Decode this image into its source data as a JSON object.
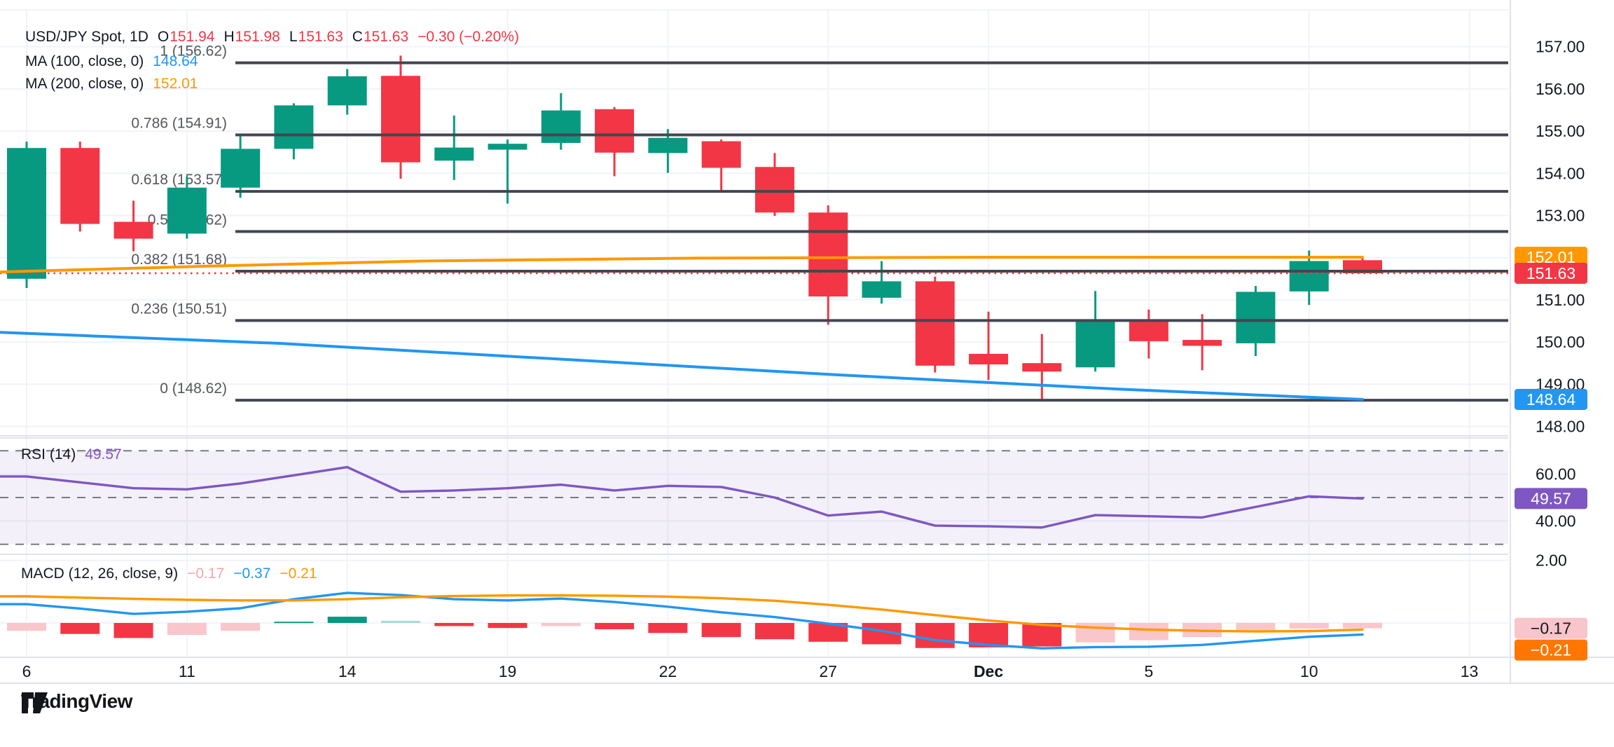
{
  "header": {
    "symbol": "USD/JPY Spot, 1D",
    "ohlc": [
      {
        "k": "O",
        "v": "151.94"
      },
      {
        "k": "H",
        "v": "151.98"
      },
      {
        "k": "L",
        "v": "151.63"
      },
      {
        "k": "C",
        "v": "151.63"
      }
    ],
    "change": "−0.30 (−0.20%)",
    "ma100_label": "MA (100, close, 0)",
    "ma100_value": "148.64",
    "ma200_label": "MA (200, close, 0)",
    "ma200_value": "152.01"
  },
  "rsi_legend": {
    "label": "RSI (14)",
    "value": "49.57"
  },
  "macd_legend": {
    "label": "MACD (12, 26, close, 9)",
    "hist": "−0.17",
    "macd": "−0.37",
    "signal": "−0.21"
  },
  "watermark": "TradingView",
  "colors": {
    "up": "#089981",
    "down": "#f23645",
    "ma100": "#2196f3",
    "ma200": "#ff9800",
    "rsi": "#7e57c2",
    "rsi_band": "rgba(126,87,194,0.09)",
    "rsi_dash": "#787b86",
    "grid": "#f0f3fa",
    "separator": "#e0e3eb",
    "text": "#131722",
    "fib_line": "#434651",
    "fib_label": "#55575e",
    "hist_red": "#f23645",
    "hist_pink": "#f9c6cb",
    "hist_teal": "#089981",
    "hist_teal_light": "#a8dcd4",
    "close_line": "#f23645",
    "badge_orange": "#ff9800",
    "badge_red": "#f23645",
    "badge_blue": "#2196f3",
    "badge_purple": "#7e57c2",
    "badge_pink": "#f8c5ca",
    "badge_deep_orange": "#ff7700"
  },
  "price_axis": {
    "labels": [
      "157.00",
      "156.00",
      "155.00",
      "154.00",
      "153.00",
      "151.00",
      "150.00",
      "149.00",
      "148.00"
    ],
    "values": [
      157,
      156,
      155,
      154,
      153,
      151,
      150,
      149,
      148
    ],
    "badges": [
      {
        "text": "152.01",
        "value": 152.01,
        "bg": "#ff9800",
        "fg": "#ffffff"
      },
      {
        "text": "151.63",
        "value": 151.63,
        "bg": "#f23645",
        "fg": "#ffffff"
      },
      {
        "text": "148.64",
        "value": 148.64,
        "bg": "#2196f3",
        "fg": "#ffffff"
      }
    ]
  },
  "rsi_axis": {
    "labels": [
      "60.00",
      "40.00"
    ],
    "values": [
      60,
      40
    ],
    "badge": {
      "text": "49.57",
      "value": 49.57,
      "bg": "#7e57c2",
      "fg": "#ffffff"
    }
  },
  "macd_axis": {
    "labels": [
      "2.00"
    ],
    "values": [
      2
    ],
    "badges": [
      {
        "text": "−0.17",
        "value": -0.17,
        "bg": "#f8c5ca",
        "fg": "#131722"
      },
      {
        "text": "−0.21",
        "value": -0.21,
        "bg": "#ff7700",
        "fg": "#ffffff"
      }
    ]
  },
  "time_axis": {
    "ticks": [
      {
        "label": "6",
        "index": 0,
        "bold": false
      },
      {
        "label": "11",
        "index": 3,
        "bold": false
      },
      {
        "label": "14",
        "index": 6,
        "bold": false
      },
      {
        "label": "19",
        "index": 9,
        "bold": false
      },
      {
        "label": "22",
        "index": 12,
        "bold": false
      },
      {
        "label": "27",
        "index": 15,
        "bold": false
      },
      {
        "label": "Dec",
        "index": 18,
        "bold": true
      },
      {
        "label": "5",
        "index": 21,
        "bold": false
      },
      {
        "label": "10",
        "index": 24,
        "bold": false
      },
      {
        "label": "13",
        "index": 27,
        "bold": false
      }
    ]
  },
  "chart_data": {
    "type": "candlestick",
    "title": "USD/JPY Spot, 1D",
    "interval": "1D",
    "price_range_visible": [
      148.0,
      157.0
    ],
    "dates": [
      "Nov 6",
      "Nov 7",
      "Nov 8",
      "Nov 11",
      "Nov 12",
      "Nov 13",
      "Nov 14",
      "Nov 15",
      "Nov 18",
      "Nov 19",
      "Nov 20",
      "Nov 21",
      "Nov 22",
      "Nov 25",
      "Nov 26",
      "Nov 27",
      "Nov 28",
      "Nov 29",
      "Dec 2",
      "Dec 3",
      "Dec 4",
      "Dec 5",
      "Dec 6",
      "Dec 9",
      "Dec 10",
      "Dec 11"
    ],
    "open": [
      151.5,
      154.6,
      152.85,
      152.57,
      153.66,
      154.58,
      155.61,
      156.31,
      154.3,
      154.56,
      154.72,
      155.52,
      154.48,
      154.76,
      154.15,
      153.07,
      151.05,
      151.44,
      149.72,
      149.5,
      149.4,
      150.49,
      150.05,
      149.97,
      151.2,
      151.94
    ],
    "high": [
      154.75,
      154.75,
      153.35,
      153.92,
      154.92,
      155.66,
      156.47,
      156.79,
      155.37,
      154.8,
      155.9,
      155.57,
      155.05,
      154.8,
      154.48,
      153.24,
      151.92,
      151.55,
      150.72,
      150.19,
      151.21,
      150.77,
      150.66,
      151.33,
      152.17,
      151.98
    ],
    "low": [
      151.28,
      152.62,
      152.15,
      152.45,
      153.42,
      154.33,
      155.39,
      153.87,
      153.84,
      153.28,
      154.56,
      153.93,
      154.01,
      153.55,
      152.99,
      150.41,
      150.91,
      149.28,
      149.1,
      148.6,
      149.3,
      149.61,
      149.33,
      149.67,
      150.88,
      151.63
    ],
    "close": [
      154.6,
      152.8,
      152.45,
      153.66,
      154.58,
      155.61,
      156.3,
      154.26,
      154.61,
      154.7,
      155.49,
      154.49,
      154.84,
      154.13,
      153.07,
      151.08,
      151.44,
      149.44,
      149.47,
      149.3,
      150.49,
      150.02,
      149.91,
      151.19,
      151.92,
      151.63
    ],
    "last_close": 151.63,
    "fib_levels": [
      {
        "label": "1 (156.62)",
        "price": 156.62
      },
      {
        "label": "0.786 (154.91)",
        "price": 154.91
      },
      {
        "label": "0.618 (153.57)",
        "price": 153.57
      },
      {
        "label": "0.5 (152.62)",
        "price": 152.62
      },
      {
        "label": "0.382 (151.68)",
        "price": 151.68
      },
      {
        "label": "0.236 (150.51)",
        "price": 150.51
      },
      {
        "label": "0 (148.62)",
        "price": 148.62
      }
    ],
    "ma100": {
      "period": 100,
      "last": 148.64,
      "i": [
        -0.5,
        4.7,
        9.9,
        15.2,
        20.5,
        25
      ],
      "values": [
        150.23,
        149.97,
        149.6,
        149.22,
        148.88,
        148.64
      ]
    },
    "ma200": {
      "period": 200,
      "last": 152.01,
      "i": [
        -0.5,
        3.4,
        7.4,
        12.6,
        17.9,
        25
      ],
      "values": [
        151.66,
        151.8,
        151.92,
        151.99,
        152.01,
        152.01
      ]
    },
    "rsi": {
      "period": 14,
      "last": 49.57,
      "bands": [
        70,
        50,
        30
      ],
      "band_fill": [
        70,
        30
      ],
      "values": [
        59,
        56.5,
        54,
        53.5,
        56,
        59.5,
        63,
        52.5,
        53,
        54,
        55.5,
        53,
        55,
        54.5,
        50,
        42.3,
        44,
        38,
        37.7,
        37.2,
        42.5,
        42,
        41.5,
        46,
        50.5,
        49.57
      ]
    },
    "macd": {
      "fast": 12,
      "slow": 26,
      "source": "close",
      "smoothing": 9,
      "macd": [
        0.6,
        0.46,
        0.29,
        0.36,
        0.47,
        0.76,
        0.96,
        0.89,
        0.76,
        0.72,
        0.78,
        0.67,
        0.52,
        0.34,
        0.19,
        -0.02,
        -0.25,
        -0.55,
        -0.7,
        -0.81,
        -0.77,
        -0.76,
        -0.7,
        -0.57,
        -0.44,
        -0.37
      ],
      "signal": [
        0.85,
        0.81,
        0.77,
        0.74,
        0.72,
        0.72,
        0.76,
        0.82,
        0.86,
        0.88,
        0.88,
        0.87,
        0.84,
        0.79,
        0.71,
        0.58,
        0.43,
        0.25,
        0.08,
        -0.06,
        -0.15,
        -0.21,
        -0.25,
        -0.27,
        -0.26,
        -0.21
      ],
      "hist": [
        -0.25,
        -0.35,
        -0.48,
        -0.38,
        -0.25,
        0.04,
        0.2,
        0.07,
        -0.1,
        -0.16,
        -0.1,
        -0.2,
        -0.32,
        -0.45,
        -0.52,
        -0.6,
        -0.68,
        -0.8,
        -0.78,
        -0.75,
        -0.62,
        -0.55,
        -0.45,
        -0.3,
        -0.18,
        -0.17
      ],
      "hist_colors": [
        "pink",
        "red",
        "red",
        "pink",
        "pink",
        "teal",
        "teal",
        "teal_light",
        "red",
        "red",
        "pink",
        "red",
        "red",
        "red",
        "red",
        "red",
        "red",
        "red",
        "red",
        "red",
        "pink",
        "pink",
        "pink",
        "pink",
        "pink",
        "pink"
      ]
    }
  }
}
